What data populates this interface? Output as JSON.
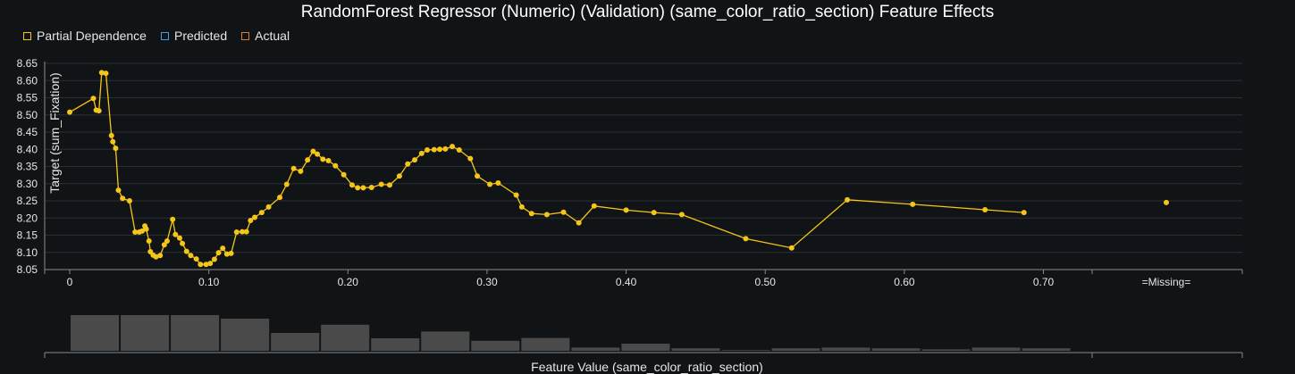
{
  "colors": {
    "background": "#111417",
    "grid": "#2a2e33",
    "line": "#f5c518",
    "partial_dependence": "#f5c518",
    "predicted": "#3a9fe0",
    "actual": "#e07a2c",
    "histogram": "#4a4a4a"
  },
  "chart_data": {
    "type": "line",
    "title": "RandomForest Regressor (Numeric) (Validation) (same_color_ratio_section) Feature Effects",
    "xlabel": "Feature Value (same_color_ratio_section)",
    "ylabel": "Target (sum_Fixation)",
    "ylim": [
      8.05,
      8.65
    ],
    "xlim": [
      -0.018,
      0.735
    ],
    "y_ticks": [
      "8.05",
      "8.10",
      "8.15",
      "8.20",
      "8.25",
      "8.30",
      "8.35",
      "8.40",
      "8.45",
      "8.50",
      "8.55",
      "8.60",
      "8.65"
    ],
    "x_ticks": [
      "0",
      "0.10",
      "0.20",
      "0.30",
      "0.40",
      "0.50",
      "0.60",
      "0.70"
    ],
    "x_tick_values": [
      0,
      0.1,
      0.2,
      0.3,
      0.4,
      0.5,
      0.6,
      0.7
    ],
    "missing_label": "=Missing=",
    "missing_value": 8.245,
    "grid": true,
    "legend": {
      "placement": "top-left",
      "items": [
        "Partial Dependence",
        "Predicted",
        "Actual"
      ]
    },
    "series": [
      {
        "name": "Partial Dependence",
        "points": [
          [
            0.0,
            8.508
          ],
          [
            0.017,
            8.548
          ],
          [
            0.019,
            8.514
          ],
          [
            0.021,
            8.512
          ],
          [
            0.023,
            8.623
          ],
          [
            0.026,
            8.621
          ],
          [
            0.03,
            8.44
          ],
          [
            0.031,
            8.422
          ],
          [
            0.033,
            8.403
          ],
          [
            0.035,
            8.281
          ],
          [
            0.038,
            8.257
          ],
          [
            0.043,
            8.25
          ],
          [
            0.047,
            8.159
          ],
          [
            0.05,
            8.159
          ],
          [
            0.052,
            8.162
          ],
          [
            0.054,
            8.177
          ],
          [
            0.055,
            8.168
          ],
          [
            0.057,
            8.133
          ],
          [
            0.058,
            8.102
          ],
          [
            0.06,
            8.092
          ],
          [
            0.062,
            8.087
          ],
          [
            0.065,
            8.091
          ],
          [
            0.068,
            8.122
          ],
          [
            0.07,
            8.133
          ],
          [
            0.074,
            8.196
          ],
          [
            0.076,
            8.152
          ],
          [
            0.079,
            8.142
          ],
          [
            0.081,
            8.126
          ],
          [
            0.084,
            8.103
          ],
          [
            0.087,
            8.091
          ],
          [
            0.091,
            8.081
          ],
          [
            0.094,
            8.065
          ],
          [
            0.098,
            8.065
          ],
          [
            0.101,
            8.068
          ],
          [
            0.104,
            8.08
          ],
          [
            0.107,
            8.099
          ],
          [
            0.11,
            8.112
          ],
          [
            0.113,
            8.095
          ],
          [
            0.116,
            8.097
          ],
          [
            0.12,
            8.159
          ],
          [
            0.124,
            8.16
          ],
          [
            0.127,
            8.16
          ],
          [
            0.13,
            8.193
          ],
          [
            0.133,
            8.202
          ],
          [
            0.138,
            8.216
          ],
          [
            0.143,
            8.232
          ],
          [
            0.151,
            8.26
          ],
          [
            0.156,
            8.298
          ],
          [
            0.161,
            8.344
          ],
          [
            0.166,
            8.336
          ],
          [
            0.171,
            8.369
          ],
          [
            0.175,
            8.394
          ],
          [
            0.178,
            8.386
          ],
          [
            0.182,
            8.371
          ],
          [
            0.186,
            8.367
          ],
          [
            0.191,
            8.352
          ],
          [
            0.197,
            8.326
          ],
          [
            0.203,
            8.296
          ],
          [
            0.207,
            8.288
          ],
          [
            0.211,
            8.288
          ],
          [
            0.217,
            8.289
          ],
          [
            0.224,
            8.298
          ],
          [
            0.23,
            8.296
          ],
          [
            0.237,
            8.322
          ],
          [
            0.243,
            8.357
          ],
          [
            0.248,
            8.369
          ],
          [
            0.253,
            8.388
          ],
          [
            0.257,
            8.398
          ],
          [
            0.262,
            8.399
          ],
          [
            0.266,
            8.4
          ],
          [
            0.27,
            8.401
          ],
          [
            0.275,
            8.408
          ],
          [
            0.28,
            8.398
          ],
          [
            0.288,
            8.373
          ],
          [
            0.293,
            8.322
          ],
          [
            0.302,
            8.298
          ],
          [
            0.308,
            8.302
          ],
          [
            0.321,
            8.267
          ],
          [
            0.325,
            8.232
          ],
          [
            0.332,
            8.213
          ],
          [
            0.343,
            8.21
          ],
          [
            0.355,
            8.217
          ],
          [
            0.366,
            8.186
          ],
          [
            0.377,
            8.235
          ],
          [
            0.4,
            8.223
          ],
          [
            0.42,
            8.216
          ],
          [
            0.44,
            8.21
          ],
          [
            0.486,
            8.14
          ],
          [
            0.519,
            8.113
          ],
          [
            0.559,
            8.253
          ],
          [
            0.606,
            8.24
          ],
          [
            0.658,
            8.224
          ],
          [
            0.686,
            8.216
          ]
        ]
      }
    ],
    "histogram": {
      "bin_edges": [
        0,
        0.036,
        0.072,
        0.108,
        0.144,
        0.18,
        0.216,
        0.252,
        0.288,
        0.324,
        0.36,
        0.396,
        0.432,
        0.468,
        0.504,
        0.54,
        0.576,
        0.612,
        0.648,
        0.684,
        0.72
      ],
      "relative_heights": [
        1.0,
        1.0,
        1.0,
        0.9,
        0.5,
        0.73,
        0.35,
        0.54,
        0.28,
        0.36,
        0.09,
        0.2,
        0.07,
        0.02,
        0.07,
        0.09,
        0.07,
        0.04,
        0.09,
        0.07
      ]
    }
  }
}
